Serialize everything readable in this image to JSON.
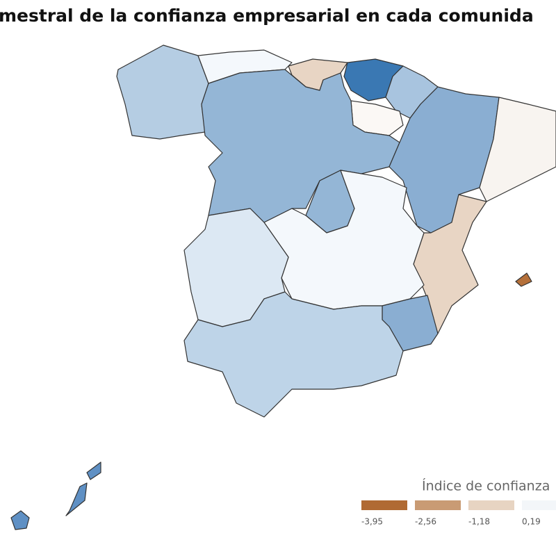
{
  "title": "mestral de la confianza empresarial en cada comunida",
  "legend": {
    "title": "Índice de confianza",
    "items": [
      {
        "label": "-3,95",
        "color": "#b06a33"
      },
      {
        "label": "-2,56",
        "color": "#c99b74"
      },
      {
        "label": "-1,18",
        "color": "#e7d4c2"
      },
      {
        "label": "0,19",
        "color": "#f3f6f9"
      }
    ]
  }
}
